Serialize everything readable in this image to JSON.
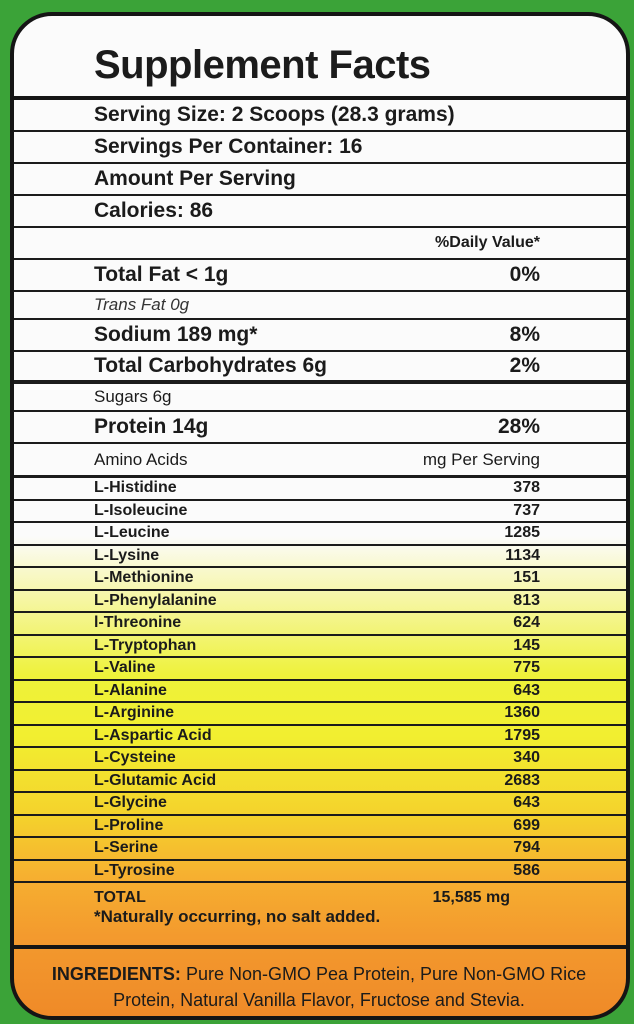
{
  "title": "Supplement Facts",
  "serving_size": "Serving Size: 2 Scoops (28.3 grams)",
  "servings_per_container": "Servings Per Container: 16",
  "amount_per_serving": "Amount Per Serving",
  "calories": "Calories: 86",
  "daily_value_header": "%Daily Value*",
  "nutrients": [
    {
      "name": "Total Fat < 1g",
      "dv": "0%"
    },
    {
      "name": "Trans Fat 0g",
      "dv": ""
    },
    {
      "name": "Sodium 189 mg*",
      "dv": "8%"
    },
    {
      "name": "Total Carbohydrates 6g",
      "dv": "2%"
    },
    {
      "name": "Sugars 6g",
      "dv": ""
    },
    {
      "name": "Protein 14g",
      "dv": "28%"
    }
  ],
  "amino_header": {
    "label": "Amino Acids",
    "unit": "mg Per Serving"
  },
  "amino_acids": [
    {
      "name": "L-Histidine",
      "mg": "378"
    },
    {
      "name": "L-Isoleucine",
      "mg": "737"
    },
    {
      "name": "L-Leucine",
      "mg": "1285"
    },
    {
      "name": "L-Lysine",
      "mg": "1134"
    },
    {
      "name": "L-Methionine",
      "mg": "151"
    },
    {
      "name": "L-Phenylalanine",
      "mg": "813"
    },
    {
      "name": "l-Threonine",
      "mg": "624"
    },
    {
      "name": "L-Tryptophan",
      "mg": "145"
    },
    {
      "name": "L-Valine",
      "mg": "775"
    },
    {
      "name": "L-Alanine",
      "mg": "643"
    },
    {
      "name": "L-Arginine",
      "mg": "1360"
    },
    {
      "name": "L-Aspartic Acid",
      "mg": "1795"
    },
    {
      "name": "L-Cysteine",
      "mg": "340"
    },
    {
      "name": "L-Glutamic Acid",
      "mg": "2683"
    },
    {
      "name": "L-Glycine",
      "mg": "643"
    },
    {
      "name": "L-Proline",
      "mg": "699"
    },
    {
      "name": "L-Serine",
      "mg": "794"
    },
    {
      "name": "L-Tyrosine",
      "mg": "586"
    }
  ],
  "total": {
    "label": "TOTAL",
    "value": "15,585 mg"
  },
  "footnote": "*Naturally occurring, no salt added.",
  "ingredients": {
    "label": "INGREDIENTS:",
    "text": " Pure Non-GMO Pea Protein, Pure Non-GMO Rice Protein, Natural Vanilla Flavor, Fructose and Stevia."
  },
  "colors": {
    "background_green": "#3ba338",
    "border": "#151515",
    "yellow": "#eef23a",
    "orange": "#ef8a28"
  }
}
